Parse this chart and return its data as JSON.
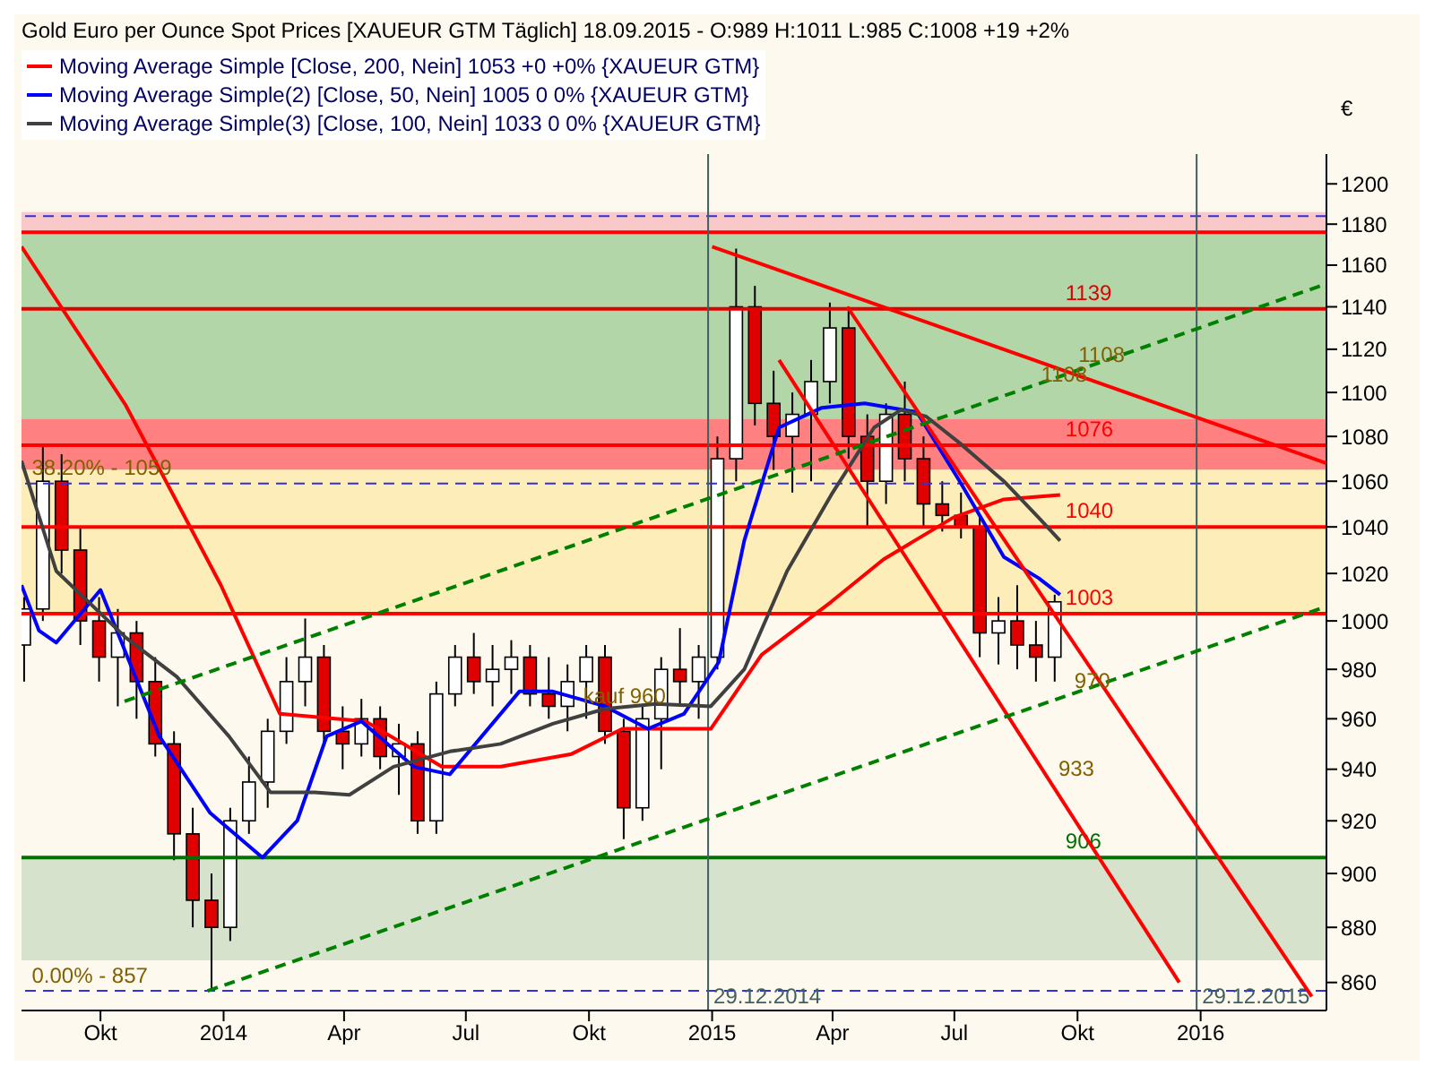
{
  "chart_data": {
    "type": "candlestick",
    "title": "Gold Euro per Ounce Spot Prices [XAUEUR GTM  Täglich] 18.09.2015 - O:989 H:1011 L:985 C:1008 +19 +2%",
    "ylabel": "€",
    "legend": "top left",
    "log": true,
    "xlim": [
      "2013-08-03",
      "2016-04-04"
    ],
    "xticks": [
      {
        "value": "2013-10-01",
        "label": "Okt"
      },
      {
        "value": "2014-01-01",
        "label": "2014"
      },
      {
        "value": "2014-04-01",
        "label": "Apr"
      },
      {
        "value": "2014-07-01",
        "label": "Jul"
      },
      {
        "value": "2014-10-01",
        "label": "Okt"
      },
      {
        "value": "2015-01-01",
        "label": "2015"
      },
      {
        "value": "2015-04-01",
        "label": "Apr"
      },
      {
        "value": "2015-07-01",
        "label": "Jul"
      },
      {
        "value": "2015-10-01",
        "label": "Okt"
      },
      {
        "value": "2016-01-01",
        "label": "2016"
      }
    ],
    "ylim": [
      850,
      1215
    ],
    "yticks": [
      860,
      880,
      900,
      920,
      940,
      960,
      980,
      1000,
      1020,
      1040,
      1060,
      1080,
      1100,
      1120,
      1140,
      1160,
      1180,
      1200
    ],
    "bands": [
      {
        "axis": "y",
        "from": 1176,
        "to": 1186,
        "color": "#f9c8c8"
      },
      {
        "axis": "y",
        "from": 1088,
        "to": 1176,
        "color": "#b3d6a9"
      },
      {
        "axis": "y",
        "from": 1065,
        "to": 1088,
        "color": "#ff8080"
      },
      {
        "axis": "y",
        "from": 1003,
        "to": 1065,
        "color": "#fdedb8"
      },
      {
        "axis": "y",
        "from": 868,
        "to": 906,
        "color": "#d6e2cc"
      }
    ],
    "ref_lines": [
      {
        "axis": "y",
        "value": 1176,
        "color": "#ff0000",
        "line_style": "solid"
      },
      {
        "axis": "y",
        "value": 1184,
        "color": "#3030e0",
        "line_style": "dashed"
      },
      {
        "axis": "y",
        "value": 1139,
        "label": "1139",
        "color": "#e00000",
        "line_style": "solid"
      },
      {
        "axis": "y",
        "value": 1076,
        "label": "1076",
        "color": "#ff0000",
        "line_style": "solid"
      },
      {
        "axis": "y",
        "value": 1059,
        "color": "#3030e0",
        "line_style": "dashed"
      },
      {
        "axis": "y",
        "value": 1040,
        "label": "1040",
        "color": "#ff0000",
        "line_style": "solid"
      },
      {
        "axis": "y",
        "value": 1003,
        "label": "1003",
        "color": "#ff0000",
        "line_style": "solid"
      },
      {
        "axis": "y",
        "value": 906,
        "label": "906",
        "color": "#007000",
        "line_style": "solid"
      },
      {
        "axis": "y",
        "value": 857,
        "color": "#3030e0",
        "line_style": "dashed"
      },
      {
        "axis": "x",
        "value": "2014-12-29",
        "label": "29.12.2014",
        "color": "#406060",
        "line_style": "solid"
      },
      {
        "axis": "x",
        "value": "2015-12-29",
        "label": "29.12.2015",
        "color": "#406060",
        "line_style": "solid"
      }
    ],
    "annotations": [
      {
        "text": "1108",
        "x": "2015-09-25",
        "y": 1110
      },
      {
        "text": "1108",
        "x": "2015-08-28",
        "y": 1101
      },
      {
        "text": "970",
        "x": "2015-09-22",
        "y": 969
      },
      {
        "text": "933",
        "x": "2015-09-10",
        "y": 934
      },
      {
        "text": "kauf 960",
        "x": "2014-09-20",
        "y": 963
      },
      {
        "text": "38.20% - 1059",
        "x": "2013-08-04",
        "y": 1059
      },
      {
        "text": "0.00% - 857",
        "x": "2013-08-04",
        "y": 857
      }
    ],
    "series": [
      {
        "colors": [
          "#ffffff",
          "#ffffff",
          "#e00000",
          "#e00000",
          "#e00000",
          "#ffffff",
          "#e00000",
          "#e00000",
          "#e00000",
          "#e00000",
          "#e00000",
          "#ffffff",
          "#ffffff",
          "#ffffff",
          "#ffffff",
          "#ffffff",
          "#e00000",
          "#e00000",
          "#ffffff",
          "#e00000",
          "#ffffff",
          "#e00000",
          "#ffffff",
          "#ffffff",
          "#e00000",
          "#ffffff",
          "#ffffff",
          "#e00000",
          "#e00000",
          "#ffffff",
          "#ffffff",
          "#e00000",
          "#e00000",
          "#ffffff",
          "#ffffff",
          "#e00000",
          "#ffffff",
          "#ffffff",
          "#ffffff",
          "#e00000",
          "#e00000",
          "#ffffff",
          "#ffffff",
          "#ffffff",
          "#e00000",
          "#e00000",
          "#ffffff",
          "#e00000",
          "#e00000",
          "#e00000",
          "#e00000",
          "#e00000",
          "#ffffff",
          "#e00000",
          "#e00000",
          "#ffffff"
        ],
        "x": [
          "2013-08-05",
          "2013-08-19",
          "2013-09-02",
          "2013-09-16",
          "2013-09-30",
          "2013-10-14",
          "2013-10-28",
          "2013-11-11",
          "2013-11-25",
          "2013-12-09",
          "2013-12-23",
          "2014-01-06",
          "2014-01-20",
          "2014-02-03",
          "2014-02-17",
          "2014-03-03",
          "2014-03-17",
          "2014-03-31",
          "2014-04-14",
          "2014-04-28",
          "2014-05-12",
          "2014-05-26",
          "2014-06-09",
          "2014-06-23",
          "2014-07-07",
          "2014-07-21",
          "2014-08-04",
          "2014-08-18",
          "2014-09-01",
          "2014-09-15",
          "2014-09-29",
          "2014-10-13",
          "2014-10-27",
          "2014-11-10",
          "2014-11-24",
          "2014-12-08",
          "2014-12-22",
          "2015-01-05",
          "2015-01-19",
          "2015-02-02",
          "2015-02-16",
          "2015-03-02",
          "2015-03-16",
          "2015-03-30",
          "2015-04-13",
          "2015-04-27",
          "2015-05-11",
          "2015-05-25",
          "2015-06-08",
          "2015-06-22",
          "2015-07-06",
          "2015-07-20",
          "2015-08-03",
          "2015-08-17",
          "2015-08-31",
          "2015-09-14"
        ],
        "ohlc": [
          [
            990,
            1010,
            975,
            1005
          ],
          [
            1005,
            1076,
            1000,
            1060
          ],
          [
            1060,
            1072,
            1020,
            1030
          ],
          [
            1030,
            1040,
            990,
            1000
          ],
          [
            1000,
            1010,
            975,
            985
          ],
          [
            985,
            1005,
            965,
            995
          ],
          [
            995,
            1000,
            960,
            975
          ],
          [
            975,
            985,
            945,
            950
          ],
          [
            950,
            955,
            905,
            915
          ],
          [
            915,
            925,
            880,
            890
          ],
          [
            890,
            900,
            857,
            880
          ],
          [
            880,
            925,
            875,
            920
          ],
          [
            920,
            945,
            915,
            935
          ],
          [
            935,
            960,
            925,
            955
          ],
          [
            955,
            985,
            950,
            975
          ],
          [
            975,
            1001,
            965,
            985
          ],
          [
            985,
            990,
            950,
            955
          ],
          [
            955,
            965,
            940,
            950
          ],
          [
            950,
            968,
            945,
            960
          ],
          [
            960,
            965,
            940,
            945
          ],
          [
            945,
            958,
            930,
            950
          ],
          [
            950,
            955,
            915,
            920
          ],
          [
            920,
            975,
            915,
            970
          ],
          [
            970,
            990,
            965,
            985
          ],
          [
            985,
            995,
            970,
            975
          ],
          [
            975,
            990,
            965,
            980
          ],
          [
            980,
            992,
            970,
            985
          ],
          [
            985,
            990,
            965,
            970
          ],
          [
            970,
            985,
            960,
            965
          ],
          [
            965,
            982,
            955,
            975
          ],
          [
            975,
            990,
            960,
            985
          ],
          [
            985,
            990,
            950,
            955
          ],
          [
            955,
            960,
            913,
            925
          ],
          [
            925,
            965,
            920,
            960
          ],
          [
            960,
            985,
            940,
            980
          ],
          [
            980,
            997,
            965,
            975
          ],
          [
            975,
            990,
            960,
            985
          ],
          [
            985,
            1080,
            980,
            1070
          ],
          [
            1070,
            1168,
            1060,
            1140
          ],
          [
            1140,
            1150,
            1085,
            1095
          ],
          [
            1095,
            1110,
            1065,
            1080
          ],
          [
            1080,
            1100,
            1055,
            1090
          ],
          [
            1090,
            1115,
            1060,
            1105
          ],
          [
            1105,
            1142,
            1095,
            1130
          ],
          [
            1130,
            1140,
            1070,
            1080
          ],
          [
            1080,
            1090,
            1040,
            1060
          ],
          [
            1060,
            1095,
            1050,
            1090
          ],
          [
            1090,
            1105,
            1060,
            1070
          ],
          [
            1070,
            1080,
            1040,
            1050
          ],
          [
            1050,
            1060,
            1038,
            1045
          ],
          [
            1045,
            1055,
            1035,
            1040
          ],
          [
            1040,
            1045,
            985,
            995
          ],
          [
            995,
            1010,
            982,
            1000
          ],
          [
            1000,
            1015,
            980,
            990
          ],
          [
            990,
            1000,
            975,
            985
          ],
          [
            985,
            1011,
            975,
            1008
          ]
        ]
      },
      {
        "type": "line",
        "name": "Moving Average Simple [Close, 200, Nein] 1053 +0 +0% {XAUEUR GTM}",
        "color": "#ff0000",
        "line_style": "solid",
        "x": [
          "2013-08-03",
          "2013-10-20",
          "2013-12-30",
          "2014-02-12",
          "2014-04-17",
          "2014-06-13",
          "2014-07-27",
          "2014-09-18",
          "2014-10-26",
          "2014-12-31",
          "2015-02-07",
          "2015-03-31",
          "2015-05-09",
          "2015-06-30",
          "2015-08-07",
          "2015-09-18"
        ],
        "values": [
          1169,
          1094,
          1015,
          962,
          959,
          941,
          941,
          946,
          956,
          956,
          986,
          1008,
          1026,
          1044,
          1052,
          1054
        ]
      },
      {
        "type": "line",
        "name": "Moving Average Simple(2) [Close, 50, Nein] 1005 0 0% {XAUEUR GTM}",
        "color": "#0000ff",
        "line_style": "solid",
        "x": [
          "2013-08-03",
          "2013-08-16",
          "2013-08-29",
          "2013-10-01",
          "2013-11-14",
          "2013-12-22",
          "2014-01-30",
          "2014-02-25",
          "2014-03-19",
          "2014-04-14",
          "2014-05-23",
          "2014-06-19",
          "2014-08-10",
          "2014-09-04",
          "2014-10-13",
          "2014-11-14",
          "2014-12-11",
          "2015-01-06",
          "2015-01-25",
          "2015-02-20",
          "2015-03-24",
          "2015-04-25",
          "2015-06-03",
          "2015-07-05",
          "2015-08-07",
          "2015-09-02",
          "2015-09-18"
        ],
        "values": [
          1015,
          996,
          991,
          1013,
          953,
          923,
          906,
          920,
          953,
          959,
          941,
          938,
          971,
          971,
          965,
          956,
          962,
          983,
          1034,
          1084,
          1093,
          1095,
          1091,
          1060,
          1027,
          1018,
          1011
        ]
      },
      {
        "type": "line",
        "name": "Moving Average Simple(3) [Close, 100, Nein] 1033 0 0% {XAUEUR GTM}",
        "color": "#404040",
        "line_style": "solid",
        "x": [
          "2013-08-03",
          "2013-08-29",
          "2013-10-20",
          "2013-11-27",
          "2014-01-05",
          "2014-02-05",
          "2014-03-10",
          "2014-04-05",
          "2014-05-08",
          "2014-06-19",
          "2014-07-27",
          "2014-09-04",
          "2014-10-13",
          "2014-11-20",
          "2014-12-31",
          "2015-01-25",
          "2015-02-26",
          "2015-03-31",
          "2015-05-02",
          "2015-05-22",
          "2015-06-10",
          "2015-07-05",
          "2015-08-07",
          "2015-09-02",
          "2015-09-18"
        ],
        "values": [
          1069,
          1021,
          993,
          977,
          953,
          931,
          931,
          930,
          941,
          947,
          950,
          958,
          964,
          966,
          965,
          980,
          1021,
          1054,
          1084,
          1092,
          1089,
          1077,
          1060,
          1044,
          1034
        ]
      },
      {
        "type": "line",
        "color": "#ff0000",
        "line_style": "solid",
        "x": [
          "2015-01-01",
          "2016-04-04"
        ],
        "values": [
          1169,
          1068
        ]
      },
      {
        "type": "line",
        "color": "#ff0000",
        "line_style": "solid",
        "x": [
          "2015-02-20",
          "2015-12-16"
        ],
        "values": [
          1115,
          860
        ]
      },
      {
        "type": "line",
        "color": "#ff0000",
        "line_style": "solid",
        "x": [
          "2015-04-12",
          "2016-03-24"
        ],
        "values": [
          1140,
          855
        ]
      },
      {
        "type": "line",
        "color": "#008000",
        "line_style": "dashed",
        "x": [
          "2013-12-20",
          "2016-04-04"
        ],
        "values": [
          857,
          1006
        ]
      },
      {
        "type": "line",
        "color": "#008000",
        "line_style": "dashed",
        "x": [
          "2013-10-19",
          "2016-04-04"
        ],
        "values": [
          967,
          1151
        ]
      }
    ]
  }
}
